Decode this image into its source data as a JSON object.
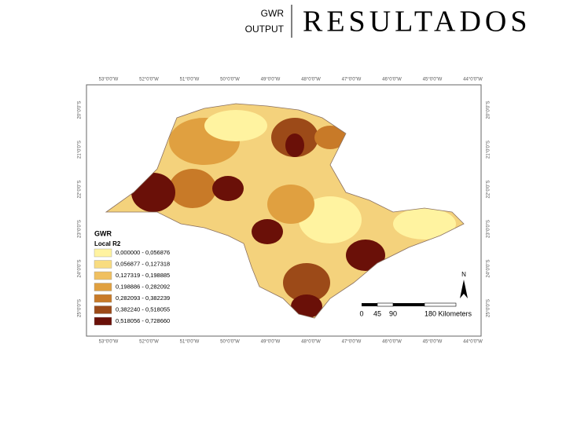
{
  "header": {
    "label_top": "GWR",
    "label_bottom": "OUTPUT",
    "title": "RESULTADOS"
  },
  "map": {
    "longitudes": [
      "53°0'0\"W",
      "52°0'0\"W",
      "51°0'0\"W",
      "50°0'0\"W",
      "49°0'0\"W",
      "48°0'0\"W",
      "47°0'0\"W",
      "46°0'0\"W",
      "45°0'0\"W",
      "44°0'0\"W"
    ],
    "latitudes": [
      "20°0'0\"S",
      "21°0'0\"S",
      "22°0'0\"S",
      "23°0'0\"S",
      "24°0'0\"S",
      "25°0'0\"S"
    ],
    "legend": {
      "title": "GWR",
      "subtitle": "Local R2",
      "items": [
        {
          "label": "0,000000 - 0,056876",
          "color": "#fff3a0"
        },
        {
          "label": "0,056877 - 0,127318",
          "color": "#f8dc80"
        },
        {
          "label": "0,127319 - 0,198885",
          "color": "#f0c060"
        },
        {
          "label": "0,198886 - 0,282092",
          "color": "#e0a040"
        },
        {
          "label": "0,282093 - 0,382239",
          "color": "#c87a28"
        },
        {
          "label": "0,382240 - 0,518055",
          "color": "#9c4a18"
        },
        {
          "label": "0,518056 - 0,728660",
          "color": "#6a1008"
        }
      ]
    },
    "scale": [
      "0",
      "45",
      "90",
      "180 Kilometers"
    ],
    "north": "N"
  }
}
